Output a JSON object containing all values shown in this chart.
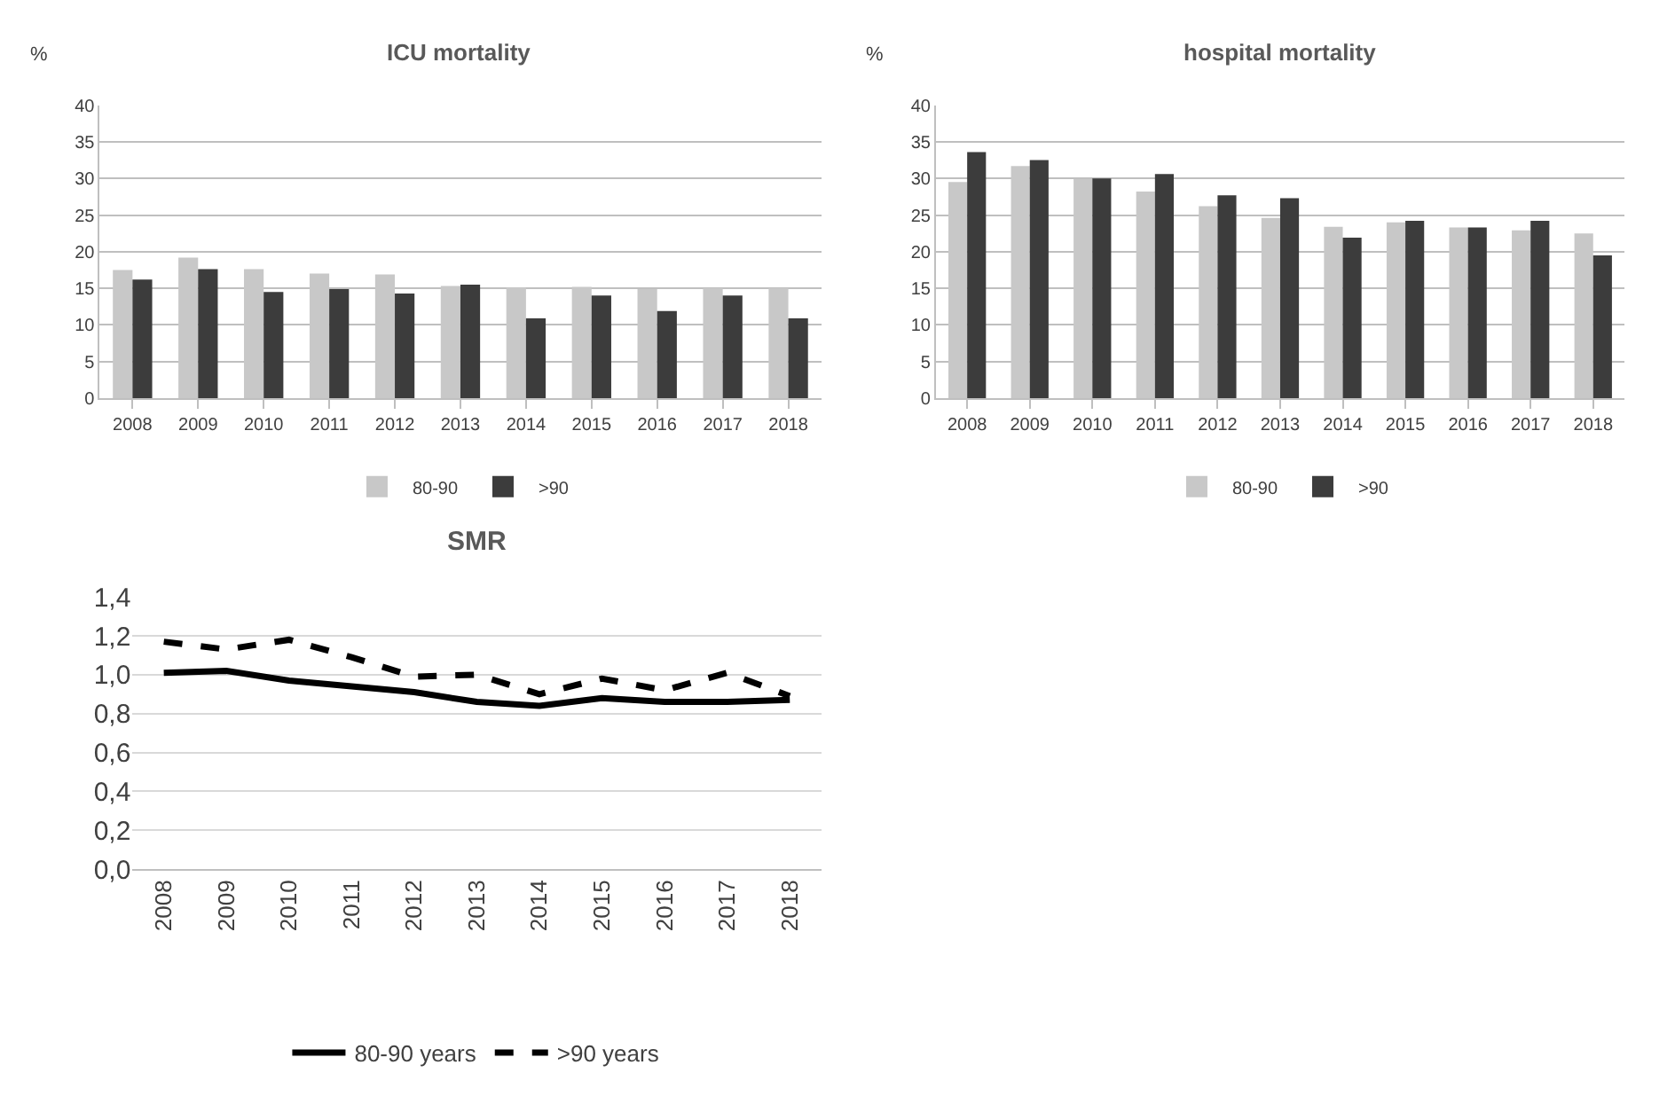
{
  "chart_data": [
    {
      "type": "bar",
      "title": "ICU mortality",
      "ylabel": "%",
      "categories": [
        "2008",
        "2009",
        "2010",
        "2011",
        "2012",
        "2013",
        "2014",
        "2015",
        "2016",
        "2017",
        "2018"
      ],
      "series": [
        {
          "name": "80-90",
          "color": "#c8c8c8",
          "values": [
            17.5,
            19.2,
            17.6,
            17.0,
            16.9,
            15.3,
            15.1,
            15.2,
            14.9,
            15.0,
            15.0
          ]
        },
        {
          "name": ">90",
          "color": "#3c3c3c",
          "values": [
            16.2,
            17.6,
            14.5,
            14.9,
            14.3,
            15.5,
            10.9,
            14.0,
            11.9,
            14.0,
            10.9
          ]
        }
      ],
      "ylim": [
        0,
        40
      ],
      "yticks": [
        0,
        5,
        10,
        15,
        20,
        25,
        30,
        35,
        40
      ],
      "grid": "y",
      "legend": "bottom"
    },
    {
      "type": "bar",
      "title": "hospital mortality",
      "ylabel": "%",
      "categories": [
        "2008",
        "2009",
        "2010",
        "2011",
        "2012",
        "2013",
        "2014",
        "2015",
        "2016",
        "2017",
        "2018"
      ],
      "series": [
        {
          "name": "80-90",
          "color": "#c8c8c8",
          "values": [
            29.5,
            31.7,
            29.9,
            28.2,
            26.2,
            24.6,
            23.4,
            24.0,
            23.3,
            22.9,
            22.5
          ]
        },
        {
          "name": ">90",
          "color": "#3c3c3c",
          "values": [
            33.6,
            32.5,
            30.0,
            30.6,
            27.7,
            27.3,
            21.9,
            24.2,
            23.3,
            24.2,
            19.5
          ]
        }
      ],
      "ylim": [
        0,
        40
      ],
      "yticks": [
        0,
        5,
        10,
        15,
        20,
        25,
        30,
        35,
        40
      ],
      "grid": "y",
      "legend": "bottom"
    },
    {
      "type": "line",
      "title": "SMR",
      "categories": [
        "2008",
        "2009",
        "2010",
        "2011",
        "2012",
        "2013",
        "2014",
        "2015",
        "2016",
        "2017",
        "2018"
      ],
      "series": [
        {
          "name": "80-90 years",
          "color": "#000000",
          "line_style": "solid",
          "values": [
            1.01,
            1.02,
            0.97,
            0.94,
            0.91,
            0.86,
            0.84,
            0.88,
            0.86,
            0.86,
            0.87
          ]
        },
        {
          "name": ">90 years",
          "color": "#000000",
          "line_style": "dashed",
          "values": [
            1.17,
            1.13,
            1.18,
            1.09,
            0.99,
            1.0,
            0.9,
            0.98,
            0.92,
            1.01,
            0.89
          ]
        }
      ],
      "ylim": [
        0,
        1.4
      ],
      "yticks": [
        {
          "value": 0,
          "label": "0,0"
        },
        {
          "value": 0.2,
          "label": "0,2"
        },
        {
          "value": 0.4,
          "label": "0,4"
        },
        {
          "value": 0.6,
          "label": "0,6"
        },
        {
          "value": 0.8,
          "label": "0,8"
        },
        {
          "value": 1.0,
          "label": "1,0"
        },
        {
          "value": 1.2,
          "label": "1,2"
        },
        {
          "value": 1.4,
          "label": "1,4"
        }
      ],
      "grid": "y",
      "legend": "bottom",
      "marker": "none"
    }
  ]
}
